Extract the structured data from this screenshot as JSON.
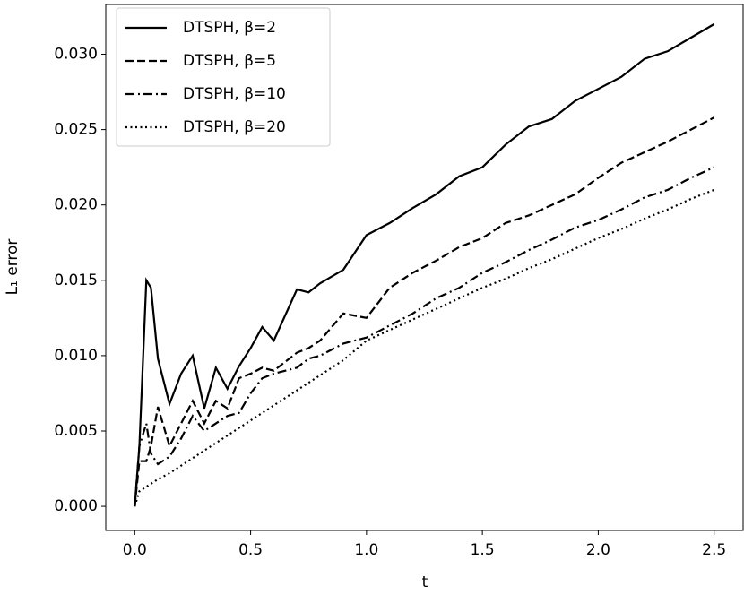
{
  "chart_data": {
    "type": "line",
    "xlabel": "t",
    "ylabel": "L₁ error",
    "xlim": [
      -0.125,
      2.625
    ],
    "ylim": [
      -0.0016,
      0.0333
    ],
    "xticks": [
      {
        "value": 0,
        "label": "0.0"
      },
      0.5,
      {
        "value": 1,
        "label": "1.0"
      },
      1.5,
      {
        "value": 2,
        "label": "2.0"
      },
      2.5
    ],
    "yticks": [
      {
        "value": 0,
        "label": "0.000"
      },
      {
        "value": 0.005,
        "label": "0.005"
      },
      {
        "value": 0.01,
        "label": "0.010"
      },
      {
        "value": 0.015,
        "label": "0.015"
      },
      {
        "value": 0.02,
        "label": "0.020"
      },
      {
        "value": 0.025,
        "label": "0.025"
      },
      {
        "value": 0.03,
        "label": "0.030"
      }
    ],
    "legend": "upper left",
    "grid": false,
    "x": [
      0,
      0.02,
      0.05,
      0.07,
      0.1,
      0.15,
      0.2,
      0.25,
      0.3,
      0.35,
      0.4,
      0.45,
      0.5,
      0.55,
      0.6,
      0.7,
      0.75,
      0.8,
      0.9,
      1.0,
      1.1,
      1.2,
      1.3,
      1.4,
      1.5,
      1.6,
      1.7,
      1.8,
      1.9,
      2.0,
      2.1,
      2.2,
      2.3,
      2.4,
      2.5
    ],
    "series": [
      {
        "name": "DTSPH, β=2",
        "color": "#000000",
        "linestyle": "solid",
        "values": [
          0,
          0.004,
          0.015,
          0.0145,
          0.0098,
          0.0068,
          0.0088,
          0.01,
          0.0065,
          0.0092,
          0.0078,
          0.0093,
          0.0105,
          0.0119,
          0.011,
          0.0144,
          0.0142,
          0.0148,
          0.0157,
          0.018,
          0.0188,
          0.0198,
          0.0207,
          0.0219,
          0.0225,
          0.024,
          0.0252,
          0.0257,
          0.0269,
          0.0277,
          0.0285,
          0.0297,
          0.0302,
          0.0311,
          0.032
        ]
      },
      {
        "name": "DTSPH, β=5",
        "color": "#000000",
        "linestyle": "dashed",
        "values": [
          0,
          0.003,
          0.003,
          0.004,
          0.0066,
          0.004,
          0.0055,
          0.007,
          0.0055,
          0.007,
          0.0065,
          0.0085,
          0.0088,
          0.0092,
          0.009,
          0.0102,
          0.0105,
          0.011,
          0.0128,
          0.0125,
          0.0145,
          0.0155,
          0.0163,
          0.0172,
          0.0178,
          0.0188,
          0.0193,
          0.02,
          0.0207,
          0.0218,
          0.0228,
          0.0235,
          0.0242,
          0.025,
          0.0258
        ]
      },
      {
        "name": "DTSPH, β=10",
        "color": "#000000",
        "linestyle": "dashdot",
        "values": [
          0,
          0.004,
          0.0055,
          0.0035,
          0.0028,
          0.0033,
          0.0045,
          0.006,
          0.005,
          0.0055,
          0.006,
          0.0062,
          0.0075,
          0.0085,
          0.0088,
          0.0092,
          0.0098,
          0.01,
          0.0108,
          0.0112,
          0.012,
          0.0128,
          0.0138,
          0.0145,
          0.0155,
          0.0162,
          0.017,
          0.0177,
          0.0185,
          0.019,
          0.0197,
          0.0205,
          0.021,
          0.0218,
          0.0225
        ]
      },
      {
        "name": "DTSPH, β=20",
        "color": "#000000",
        "linestyle": "dotted",
        "values": [
          0,
          0.001,
          0.0013,
          0.0015,
          0.0018,
          0.0022,
          0.0027,
          0.0032,
          0.0037,
          0.0042,
          0.0047,
          0.0052,
          0.0057,
          0.0062,
          0.0067,
          0.0077,
          0.0082,
          0.0087,
          0.0097,
          0.011,
          0.0117,
          0.0124,
          0.0131,
          0.0138,
          0.0145,
          0.0151,
          0.0158,
          0.0164,
          0.0171,
          0.0178,
          0.0184,
          0.0191,
          0.0197,
          0.0204,
          0.021
        ]
      }
    ]
  }
}
